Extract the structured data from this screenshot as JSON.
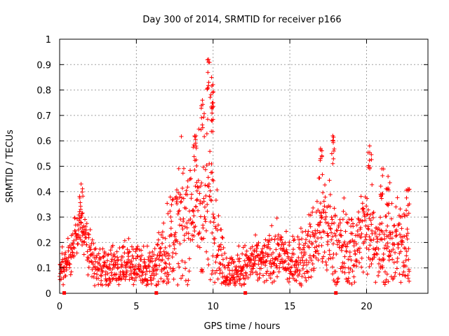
{
  "chart_data": {
    "type": "scatter",
    "title": "Day 300 of 2014, SRMTID for receiver p166",
    "xlabel": "GPS time / hours",
    "ylabel": "SRMTID / TECUs",
    "xlim": [
      0,
      24
    ],
    "ylim": [
      0,
      1
    ],
    "xticks": [
      0,
      5,
      10,
      15,
      20
    ],
    "xtick_labels": [
      "0",
      "5",
      "10",
      "15",
      "20"
    ],
    "yticks": [
      0,
      0.1,
      0.2,
      0.3,
      0.4,
      0.5,
      0.6,
      0.7,
      0.8,
      0.9,
      1
    ],
    "ytick_labels": [
      "0",
      "0.1",
      "0.2",
      "0.3",
      "0.4",
      "0.5",
      "0.6",
      "0.7",
      "0.8",
      "0.9",
      "1"
    ],
    "grid": true,
    "marker": "plus",
    "series_color": "#ff0000",
    "level_profile": {
      "x": [
        0,
        0.3,
        0.5,
        0.8,
        1.0,
        1.3,
        1.6,
        1.9,
        2.2,
        2.5,
        3.0,
        3.5,
        4.0,
        4.5,
        5.0,
        5.5,
        6.0,
        6.3,
        6.6,
        7.0,
        7.3,
        7.6,
        8.0,
        8.5,
        9.0,
        9.4,
        9.8,
        10.1,
        10.4,
        10.7,
        11.0,
        11.5,
        12.0,
        12.5,
        13.0,
        13.5,
        14.0,
        14.5,
        15.0,
        15.5,
        16.0,
        16.5,
        17.0,
        17.4,
        17.8,
        18.2,
        18.6,
        19.0,
        19.5,
        20.0,
        20.4,
        20.8,
        21.2,
        21.6,
        22.0,
        22.4,
        22.8
      ],
      "y": [
        0.1,
        0.08,
        0.14,
        0.16,
        0.22,
        0.27,
        0.25,
        0.17,
        0.14,
        0.11,
        0.1,
        0.1,
        0.1,
        0.11,
        0.1,
        0.1,
        0.11,
        0.12,
        0.14,
        0.18,
        0.22,
        0.25,
        0.28,
        0.32,
        0.34,
        0.36,
        0.38,
        0.3,
        0.18,
        0.1,
        0.08,
        0.08,
        0.1,
        0.12,
        0.12,
        0.13,
        0.15,
        0.16,
        0.1,
        0.13,
        0.15,
        0.2,
        0.25,
        0.24,
        0.22,
        0.18,
        0.17,
        0.16,
        0.22,
        0.26,
        0.25,
        0.2,
        0.17,
        0.16,
        0.18,
        0.22,
        0.15
      ]
    },
    "spread_profile": {
      "x": [
        0,
        2,
        6,
        7,
        8,
        9,
        9.8,
        10.3,
        11,
        15,
        16,
        17,
        18,
        19,
        20,
        21,
        22,
        23
      ],
      "y": [
        0.04,
        0.05,
        0.04,
        0.08,
        0.12,
        0.15,
        0.14,
        0.08,
        0.04,
        0.05,
        0.06,
        0.1,
        0.1,
        0.08,
        0.09,
        0.08,
        0.08,
        0.08
      ]
    },
    "peaks": [
      {
        "x": 1.4,
        "y": 0.43
      },
      {
        "x": 8.8,
        "y": 0.62
      },
      {
        "x": 9.3,
        "y": 0.76
      },
      {
        "x": 9.7,
        "y": 0.92
      },
      {
        "x": 9.9,
        "y": 0.85
      },
      {
        "x": 10.0,
        "y": 0.75
      },
      {
        "x": 17.0,
        "y": 0.57
      },
      {
        "x": 17.8,
        "y": 0.62
      },
      {
        "x": 20.2,
        "y": 0.58
      },
      {
        "x": 21.0,
        "y": 0.49
      },
      {
        "x": 21.4,
        "y": 0.46
      },
      {
        "x": 22.7,
        "y": 0.41
      }
    ],
    "baseline_marks": [
      0.3,
      6.3,
      12.1,
      18.0
    ],
    "time_range": [
      0,
      22.8
    ]
  }
}
